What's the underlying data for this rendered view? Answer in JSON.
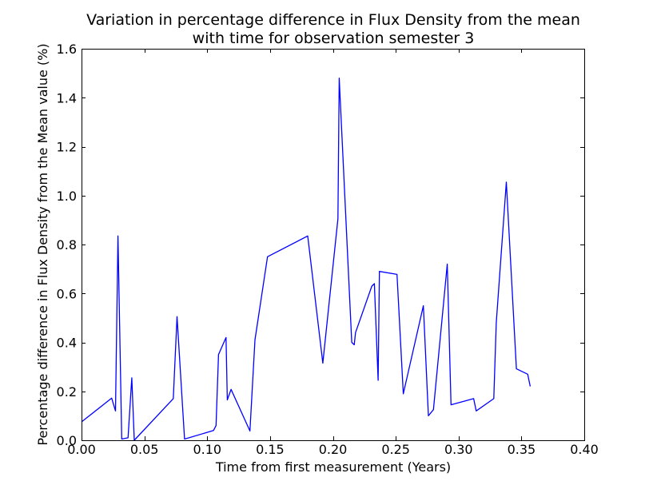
{
  "chart_data": {
    "type": "line",
    "title_line1": "Variation in percentage difference in Flux Density from the mean",
    "title_line2": "with time for observation semester 3",
    "xlabel": "Time from first measurement (Years)",
    "ylabel": "Percentage difference in Flux Density from the Mean value (%)",
    "xlim": [
      0.0,
      0.4
    ],
    "ylim": [
      0.0,
      1.6
    ],
    "x_ticks": [
      "0.00",
      "0.05",
      "0.10",
      "0.15",
      "0.20",
      "0.25",
      "0.30",
      "0.35",
      "0.40"
    ],
    "y_ticks": [
      "0.0",
      "0.2",
      "0.4",
      "0.6",
      "0.8",
      "1.0",
      "1.2",
      "1.4",
      "1.6"
    ],
    "grid": false,
    "series": [
      {
        "color": "#0000ff",
        "x": [
          0.0,
          0.024,
          0.027,
          0.029,
          0.032,
          0.037,
          0.04,
          0.042,
          0.073,
          0.076,
          0.082,
          0.105,
          0.107,
          0.109,
          0.115,
          0.116,
          0.119,
          0.134,
          0.138,
          0.148,
          0.18,
          0.192,
          0.204,
          0.205,
          0.215,
          0.217,
          0.218,
          0.231,
          0.233,
          0.236,
          0.237,
          0.251,
          0.256,
          0.272,
          0.276,
          0.28,
          0.291,
          0.294,
          0.312,
          0.314,
          0.328,
          0.33,
          0.338,
          0.346,
          0.355,
          0.357
        ],
        "y": [
          0.075,
          0.172,
          0.12,
          0.835,
          0.005,
          0.01,
          0.255,
          0.0,
          0.17,
          0.505,
          0.005,
          0.04,
          0.06,
          0.35,
          0.42,
          0.165,
          0.208,
          0.038,
          0.41,
          0.75,
          0.835,
          0.315,
          0.905,
          1.48,
          0.4,
          0.39,
          0.44,
          0.63,
          0.64,
          0.245,
          0.69,
          0.678,
          0.19,
          0.55,
          0.1,
          0.125,
          0.72,
          0.145,
          0.17,
          0.12,
          0.17,
          0.48,
          1.055,
          0.292,
          0.27,
          0.22
        ]
      }
    ]
  }
}
